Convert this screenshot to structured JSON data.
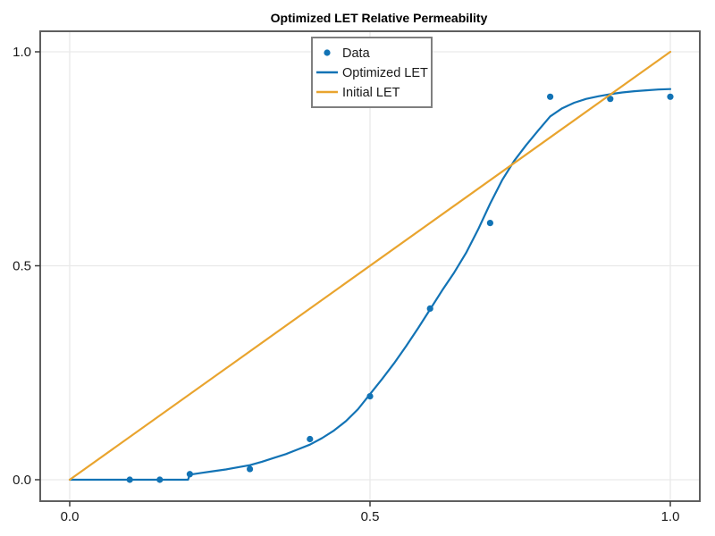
{
  "chart_data": {
    "type": "line",
    "title": "Optimized LET Relative Permeability",
    "xlabel": "",
    "ylabel": "",
    "xlim": [
      -0.05,
      1.05
    ],
    "ylim": [
      -0.05,
      1.05
    ],
    "grid": true,
    "legend_position": "top-center",
    "x_ticks": {
      "values": [
        0.0,
        0.5,
        1.0
      ],
      "labels": [
        "0.0",
        "0.5",
        "1.0"
      ]
    },
    "y_ticks": {
      "values": [
        0.0,
        0.5,
        1.0
      ],
      "labels": [
        "0.0",
        "0.5",
        "1.0"
      ]
    },
    "series": [
      {
        "name": "Data",
        "style": "scatter",
        "color": "#1273b5",
        "x": [
          0.1,
          0.15,
          0.2,
          0.3,
          0.4,
          0.5,
          0.6,
          0.7,
          0.8,
          0.9,
          1.0
        ],
        "y": [
          0.0,
          0.0,
          0.013,
          0.025,
          0.095,
          0.195,
          0.4,
          0.6,
          0.895,
          0.89,
          0.895
        ]
      },
      {
        "name": "Optimized LET",
        "style": "line",
        "color": "#1273b5",
        "x": [
          0.0,
          0.05,
          0.1,
          0.15,
          0.197,
          0.2,
          0.22,
          0.24,
          0.26,
          0.28,
          0.3,
          0.32,
          0.34,
          0.36,
          0.38,
          0.4,
          0.42,
          0.44,
          0.46,
          0.48,
          0.5,
          0.52,
          0.54,
          0.56,
          0.58,
          0.6,
          0.62,
          0.64,
          0.66,
          0.68,
          0.7,
          0.72,
          0.74,
          0.76,
          0.78,
          0.8,
          0.82,
          0.84,
          0.86,
          0.88,
          0.9,
          0.92,
          0.94,
          0.96,
          0.98,
          1.0
        ],
        "y": [
          0.0,
          0.0,
          0.0,
          0.0,
          0.0,
          0.012,
          0.016,
          0.02,
          0.024,
          0.029,
          0.034,
          0.042,
          0.051,
          0.06,
          0.071,
          0.082,
          0.097,
          0.115,
          0.137,
          0.165,
          0.2,
          0.235,
          0.272,
          0.312,
          0.354,
          0.398,
          0.442,
          0.484,
          0.53,
          0.585,
          0.645,
          0.7,
          0.745,
          0.782,
          0.816,
          0.849,
          0.868,
          0.881,
          0.89,
          0.896,
          0.901,
          0.905,
          0.908,
          0.91,
          0.912,
          0.913
        ]
      },
      {
        "name": "Initial LET",
        "style": "line",
        "color": "#e9a42e",
        "x": [
          0.0,
          1.0
        ],
        "y": [
          0.0,
          1.0
        ]
      }
    ],
    "style_colors": {
      "grid": "#e9e9e9",
      "spine": "#5f5f5f",
      "tick": "#3c3c3c",
      "legend_border": "#7f7f7f",
      "background": "#ffffff"
    }
  }
}
